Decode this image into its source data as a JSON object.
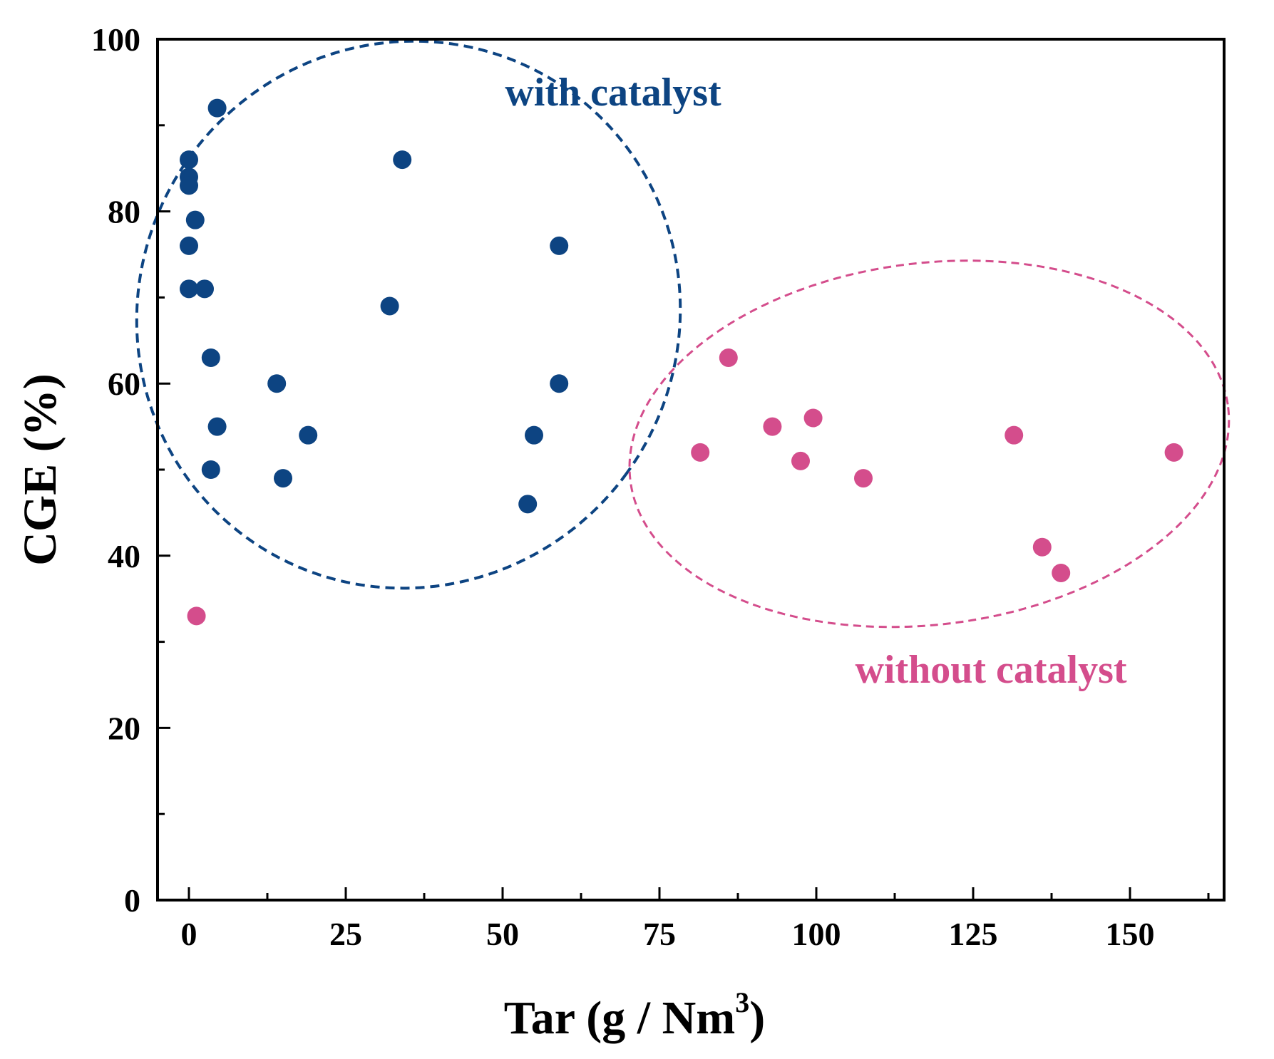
{
  "chart_data": {
    "type": "scatter",
    "title": "",
    "xlabel": "Tar (g / Nm",
    "xlabel_superscript": "3",
    "xlabel_close": ")",
    "ylabel": "CGE (%)",
    "xlim": [
      -5,
      165
    ],
    "ylim": [
      0,
      100
    ],
    "x_ticks": [
      0,
      25,
      50,
      75,
      100,
      125,
      150
    ],
    "x_tick_labels": [
      "0",
      "25",
      "50",
      "75",
      "100",
      "125",
      "150"
    ],
    "x_minor_ticks": [
      12.5,
      37.5,
      62.5,
      87.5,
      112.5,
      137.5,
      162.5
    ],
    "y_ticks": [
      0,
      20,
      40,
      60,
      80,
      100
    ],
    "y_tick_labels": [
      "0",
      "20",
      "40",
      "60",
      "80",
      "100"
    ],
    "y_minor_ticks": [
      10,
      30,
      50,
      70,
      90
    ],
    "grid": false,
    "series": [
      {
        "name": "with catalyst",
        "color": "#0d4482",
        "points": [
          {
            "x": 4.5,
            "y": 92
          },
          {
            "x": 0,
            "y": 86
          },
          {
            "x": 0,
            "y": 84
          },
          {
            "x": 0,
            "y": 83
          },
          {
            "x": 1,
            "y": 79
          },
          {
            "x": 0,
            "y": 76
          },
          {
            "x": 0,
            "y": 71
          },
          {
            "x": 2.5,
            "y": 71
          },
          {
            "x": 3.5,
            "y": 63
          },
          {
            "x": 4.5,
            "y": 55
          },
          {
            "x": 3.5,
            "y": 50
          },
          {
            "x": 14,
            "y": 60
          },
          {
            "x": 15,
            "y": 49
          },
          {
            "x": 19,
            "y": 54
          },
          {
            "x": 32,
            "y": 69
          },
          {
            "x": 34,
            "y": 86
          },
          {
            "x": 59,
            "y": 76
          },
          {
            "x": 59,
            "y": 60
          },
          {
            "x": 55,
            "y": 54
          },
          {
            "x": 54,
            "y": 46
          }
        ]
      },
      {
        "name": "without catalyst",
        "color": "#d44d8c",
        "points": [
          {
            "x": 1.2,
            "y": 33
          },
          {
            "x": 86,
            "y": 63
          },
          {
            "x": 81.5,
            "y": 52
          },
          {
            "x": 93,
            "y": 55
          },
          {
            "x": 99.5,
            "y": 56
          },
          {
            "x": 97.5,
            "y": 51
          },
          {
            "x": 107.5,
            "y": 49
          },
          {
            "x": 131.5,
            "y": 54
          },
          {
            "x": 157,
            "y": 52
          },
          {
            "x": 136,
            "y": 41
          },
          {
            "x": 139,
            "y": 38
          }
        ]
      }
    ],
    "groups": [
      {
        "label": "with catalyst",
        "color": "#0d4482",
        "center": {
          "x": 35,
          "y": 68
        },
        "radii": {
          "x": 43,
          "y": 32
        },
        "rotation_deg": 36
      },
      {
        "label": "without catalyst",
        "color": "#d44d8c",
        "center": {
          "x": 118,
          "y": 53
        },
        "radii": {
          "x": 48,
          "y": 21
        },
        "rotation_deg": -7
      }
    ]
  }
}
